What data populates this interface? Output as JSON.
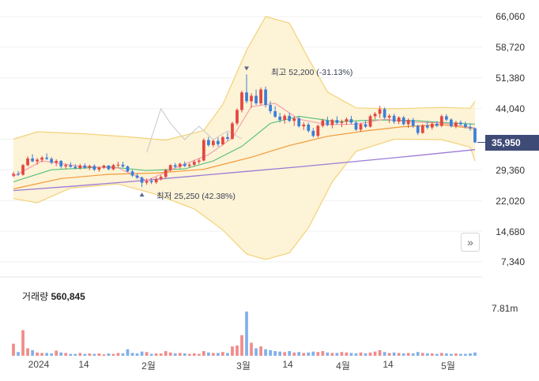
{
  "price_axis": {
    "ticks": [
      "66,060",
      "58,720",
      "51,380",
      "44,040",
      "36,700",
      "29,360",
      "22,020",
      "14,680",
      "7,340"
    ],
    "range": [
      7340,
      66060
    ]
  },
  "time_axis": {
    "labels": [
      "2024",
      "14",
      "2월",
      "3월",
      "14",
      "4월",
      "14",
      "5월"
    ]
  },
  "current_price": {
    "label": "35,950",
    "value": 35950
  },
  "annotations": {
    "high": "최고 52,200 (-31.13%)",
    "low": "최저 25,250 (42.38%)"
  },
  "volume": {
    "label": "거래량",
    "value": "560,845",
    "axis_tick": "7.81m"
  },
  "colors": {
    "up": "#e4463f",
    "down": "#3d7fd9",
    "band_fill": "#fdf3d6",
    "band_line": "#f3d27a",
    "ma5": "#f19ab0",
    "ma20": "#4fbf7a",
    "ma60": "#f29a3a",
    "ma120": "#9c7bd6",
    "badge": "#3f4b77"
  },
  "chart_data": {
    "type": "candlestick",
    "y_range": [
      7340,
      66060
    ],
    "candles": [
      [
        28000,
        28900,
        27600,
        28400
      ],
      [
        28400,
        29100,
        27900,
        28200
      ],
      [
        28200,
        30800,
        28000,
        30500
      ],
      [
        30500,
        32600,
        30200,
        32100
      ],
      [
        32100,
        33100,
        31200,
        31400
      ],
      [
        31400,
        32200,
        30600,
        31800
      ],
      [
        31800,
        32700,
        31200,
        32300
      ],
      [
        32300,
        33300,
        31700,
        32000
      ],
      [
        32000,
        32400,
        30700,
        31100
      ],
      [
        31100,
        31900,
        30300,
        31500
      ],
      [
        31500,
        31700,
        29700,
        30200
      ],
      [
        30200,
        30900,
        29600,
        30500
      ],
      [
        30500,
        31200,
        29900,
        30100
      ],
      [
        30100,
        30700,
        29500,
        29800
      ],
      [
        29800,
        30800,
        29400,
        30400
      ],
      [
        30400,
        30900,
        29600,
        29900
      ],
      [
        29900,
        30600,
        29300,
        30300
      ],
      [
        30300,
        30700,
        29100,
        29400
      ],
      [
        29400,
        30200,
        28900,
        29900
      ],
      [
        29900,
        30600,
        29600,
        30400
      ],
      [
        30400,
        30500,
        29300,
        29500
      ],
      [
        29500,
        30800,
        29200,
        30500
      ],
      [
        30500,
        31300,
        30000,
        30600
      ],
      [
        30600,
        31300,
        29900,
        30200
      ],
      [
        30200,
        30400,
        28800,
        29000
      ],
      [
        29000,
        29400,
        27700,
        28000
      ],
      [
        28000,
        28500,
        27200,
        27500
      ],
      [
        27500,
        27800,
        25250,
        26300
      ],
      [
        26300,
        27300,
        25800,
        26700
      ],
      [
        26700,
        27400,
        26000,
        26400
      ],
      [
        26400,
        27600,
        26000,
        27200
      ],
      [
        27200,
        28100,
        26800,
        27700
      ],
      [
        27700,
        29600,
        27400,
        29300
      ],
      [
        29300,
        30700,
        29000,
        30500
      ],
      [
        30500,
        31000,
        29800,
        30100
      ],
      [
        30100,
        31100,
        29700,
        30800
      ],
      [
        30800,
        31400,
        30000,
        30300
      ],
      [
        30300,
        31000,
        29900,
        30600
      ],
      [
        30600,
        31700,
        30300,
        31300
      ],
      [
        31300,
        32100,
        30800,
        31600
      ],
      [
        31600,
        36900,
        31400,
        36500
      ],
      [
        36500,
        37300,
        34900,
        35300
      ],
      [
        35300,
        36600,
        34800,
        36300
      ],
      [
        36300,
        37100,
        34900,
        35500
      ],
      [
        35500,
        37500,
        35200,
        37200
      ],
      [
        37200,
        38300,
        36300,
        36800
      ],
      [
        36800,
        40900,
        36600,
        40500
      ],
      [
        40500,
        44100,
        40000,
        43700
      ],
      [
        43700,
        48300,
        43100,
        47900
      ],
      [
        47900,
        52200,
        45300,
        45800
      ],
      [
        45800,
        47700,
        44200,
        47100
      ],
      [
        47100,
        48600,
        44900,
        45300
      ],
      [
        45300,
        49100,
        44800,
        48600
      ],
      [
        48600,
        49300,
        44300,
        44900
      ],
      [
        44900,
        45800,
        42800,
        43400
      ],
      [
        43400,
        44600,
        41800,
        42100
      ],
      [
        42100,
        43000,
        40700,
        41300
      ],
      [
        41300,
        42700,
        40400,
        42300
      ],
      [
        42300,
        43000,
        40800,
        41100
      ],
      [
        41100,
        42100,
        39900,
        41700
      ],
      [
        41700,
        42200,
        39500,
        39800
      ],
      [
        39800,
        40800,
        38900,
        40200
      ],
      [
        40200,
        40700,
        38300,
        38700
      ],
      [
        38700,
        39400,
        37100,
        37500
      ],
      [
        37500,
        40200,
        37100,
        39900
      ],
      [
        39900,
        41600,
        39500,
        41200
      ],
      [
        41200,
        42100,
        39800,
        40100
      ],
      [
        40100,
        41600,
        39300,
        41300
      ],
      [
        41300,
        42200,
        40200,
        40600
      ],
      [
        40600,
        41400,
        39600,
        40900
      ],
      [
        40900,
        41900,
        40100,
        41500
      ],
      [
        41500,
        42300,
        40300,
        40700
      ],
      [
        40700,
        41000,
        38700,
        39000
      ],
      [
        39000,
        40600,
        38500,
        40300
      ],
      [
        40300,
        41100,
        39400,
        39700
      ],
      [
        39700,
        42600,
        39500,
        42200
      ],
      [
        42200,
        43200,
        41500,
        42800
      ],
      [
        42800,
        44700,
        41800,
        43900
      ],
      [
        43900,
        44300,
        41500,
        41900
      ],
      [
        41900,
        42700,
        40600,
        42300
      ],
      [
        42300,
        42800,
        40400,
        40900
      ],
      [
        40900,
        42200,
        40300,
        41900
      ],
      [
        41900,
        42300,
        40000,
        40300
      ],
      [
        40300,
        41700,
        39400,
        41300
      ],
      [
        41300,
        41800,
        39400,
        39900
      ],
      [
        39900,
        40200,
        37700,
        38200
      ],
      [
        38200,
        40300,
        38000,
        40000
      ],
      [
        40000,
        41000,
        39100,
        39500
      ],
      [
        39500,
        40800,
        39000,
        40400
      ],
      [
        40400,
        41000,
        39600,
        39900
      ],
      [
        39900,
        42600,
        39600,
        42200
      ],
      [
        42200,
        42700,
        41000,
        41400
      ],
      [
        41400,
        41700,
        39500,
        39800
      ],
      [
        39800,
        41100,
        39300,
        40700
      ],
      [
        40700,
        41200,
        39900,
        40300
      ],
      [
        40300,
        40900,
        39300,
        39600
      ],
      [
        39600,
        40500,
        38700,
        39300
      ],
      [
        39300,
        39500,
        35800,
        35950
      ]
    ],
    "volume_max": 7810000,
    "volumes": [
      0.26,
      0.08,
      0.55,
      0.16,
      0.12,
      0.07,
      0.06,
      0.06,
      0.05,
      0.11,
      0.07,
      0.06,
      0.04,
      0.04,
      0.06,
      0.04,
      0.05,
      0.04,
      0.05,
      0.03,
      0.05,
      0.04,
      0.06,
      0.05,
      0.14,
      0.06,
      0.05,
      0.09,
      0.08,
      0.04,
      0.05,
      0.05,
      0.1,
      0.07,
      0.05,
      0.06,
      0.05,
      0.04,
      0.05,
      0.04,
      0.1,
      0.07,
      0.06,
      0.06,
      0.08,
      0.06,
      0.2,
      0.22,
      0.44,
      0.95,
      0.28,
      0.16,
      0.2,
      0.14,
      0.12,
      0.1,
      0.09,
      0.08,
      0.1,
      0.07,
      0.08,
      0.06,
      0.07,
      0.09,
      0.08,
      0.1,
      0.07,
      0.06,
      0.06,
      0.08,
      0.07,
      0.06,
      0.05,
      0.07,
      0.05,
      0.07,
      0.09,
      0.12,
      0.08,
      0.06,
      0.07,
      0.06,
      0.05,
      0.06,
      0.05,
      0.08,
      0.06,
      0.05,
      0.05,
      0.04,
      0.06,
      0.05,
      0.04,
      0.05,
      0.04,
      0.04,
      0.05,
      0.07
    ],
    "bollinger_upper": [
      [
        0,
        36700
      ],
      [
        5,
        38500
      ],
      [
        15,
        38000
      ],
      [
        25,
        37200
      ],
      [
        32,
        36500
      ],
      [
        40,
        38800
      ],
      [
        44,
        45000
      ],
      [
        49,
        58000
      ],
      [
        53,
        66060
      ],
      [
        58,
        64500
      ],
      [
        62,
        56000
      ],
      [
        66,
        48000
      ],
      [
        72,
        44200
      ],
      [
        80,
        44000
      ],
      [
        90,
        44300
      ],
      [
        96,
        44100
      ],
      [
        97,
        45800
      ]
    ],
    "bollinger_lower": [
      [
        0,
        22500
      ],
      [
        5,
        21500
      ],
      [
        12,
        25000
      ],
      [
        22,
        26000
      ],
      [
        30,
        23500
      ],
      [
        38,
        20000
      ],
      [
        44,
        15000
      ],
      [
        49,
        9200
      ],
      [
        53,
        7900
      ],
      [
        58,
        9500
      ],
      [
        62,
        15500
      ],
      [
        67,
        26500
      ],
      [
        72,
        33800
      ],
      [
        80,
        36700
      ],
      [
        90,
        36600
      ],
      [
        96,
        34800
      ],
      [
        97,
        31500
      ]
    ],
    "ma_short": [
      [
        0,
        27800
      ],
      [
        6,
        31500
      ],
      [
        14,
        30200
      ],
      [
        22,
        29800
      ],
      [
        28,
        26800
      ],
      [
        34,
        29800
      ],
      [
        41,
        33000
      ],
      [
        46,
        37000
      ],
      [
        50,
        44500
      ],
      [
        55,
        45300
      ],
      [
        60,
        41500
      ],
      [
        66,
        40200
      ],
      [
        72,
        40300
      ],
      [
        78,
        41500
      ],
      [
        84,
        40800
      ],
      [
        90,
        40600
      ],
      [
        97,
        39400
      ]
    ],
    "ma_mid": [
      [
        0,
        26500
      ],
      [
        8,
        29400
      ],
      [
        20,
        30100
      ],
      [
        28,
        29200
      ],
      [
        36,
        29600
      ],
      [
        42,
        31500
      ],
      [
        48,
        35000
      ],
      [
        54,
        40500
      ],
      [
        60,
        42200
      ],
      [
        68,
        40900
      ],
      [
        76,
        41300
      ],
      [
        84,
        41200
      ],
      [
        90,
        40700
      ],
      [
        97,
        40300
      ]
    ],
    "ma_long": [
      [
        0,
        24800
      ],
      [
        10,
        27300
      ],
      [
        20,
        28300
      ],
      [
        30,
        28600
      ],
      [
        40,
        29500
      ],
      [
        50,
        32400
      ],
      [
        58,
        35200
      ],
      [
        66,
        37400
      ],
      [
        74,
        38700
      ],
      [
        82,
        39700
      ],
      [
        90,
        40200
      ],
      [
        97,
        39200
      ]
    ],
    "ma_longest": [
      [
        0,
        24400
      ],
      [
        12,
        25400
      ],
      [
        24,
        26500
      ],
      [
        36,
        27700
      ],
      [
        48,
        28900
      ],
      [
        60,
        30100
      ],
      [
        72,
        31400
      ],
      [
        84,
        32700
      ],
      [
        97,
        34200
      ]
    ],
    "comparison_line": [
      [
        28,
        33500
      ],
      [
        31,
        44000
      ],
      [
        33,
        40500
      ],
      [
        36,
        36600
      ],
      [
        39,
        39800
      ],
      [
        42,
        36600
      ],
      [
        45,
        38700
      ],
      [
        48,
        36800
      ]
    ]
  }
}
